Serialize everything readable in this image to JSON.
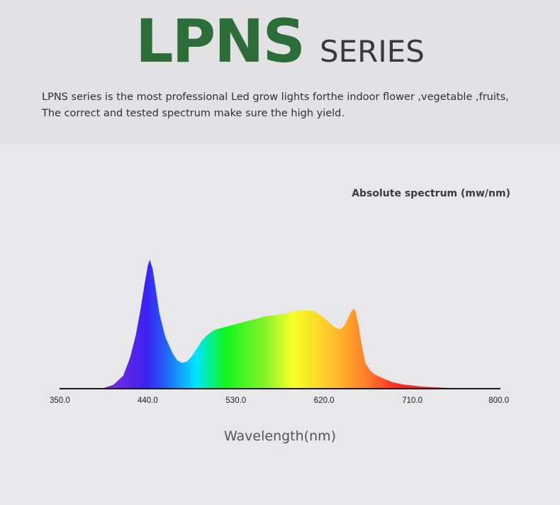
{
  "header": {
    "title_main": "LPNS",
    "title_sub": "SERIES",
    "description_lines": [
      "LPNS series is the most professional Led grow lights forthe indoor flower ,vegetable ,fruits,",
      "The correct and tested spectrum make sure the high yield."
    ]
  },
  "colors": {
    "brand_green": "#2d6d38",
    "title_dark": "#3a3a3a",
    "header_bg": "#e2e2e4",
    "page_bg": "#e8e8ea"
  },
  "chart_data": {
    "type": "area",
    "title": "Absolute spectrum (mw/nm)",
    "xlabel": "Wavelength(nm)",
    "ylabel": "",
    "xlim": [
      350,
      800
    ],
    "ylim": [
      0,
      1
    ],
    "x_tick_labels": [
      "350.0",
      "440.0",
      "530.0",
      "620.0",
      "710.0",
      "800.0"
    ],
    "x_ticks": [
      350,
      440,
      530,
      620,
      710,
      800
    ],
    "grid": false,
    "series": [
      {
        "x": [
          350,
          380,
          395,
          405,
          415,
          422,
          428,
          433,
          437,
          440,
          442,
          445,
          448,
          452,
          458,
          465,
          470,
          475,
          480,
          485,
          490,
          495,
          500,
          505,
          510,
          515,
          520,
          530,
          540,
          550,
          560,
          570,
          580,
          590,
          600,
          610,
          620,
          630,
          636,
          640,
          644,
          648,
          650,
          652,
          655,
          658,
          662,
          667,
          672,
          680,
          690,
          700,
          720,
          740,
          760,
          780,
          800
        ],
        "y": [
          0,
          0,
          0.005,
          0.03,
          0.1,
          0.24,
          0.42,
          0.63,
          0.82,
          0.95,
          1.0,
          0.93,
          0.78,
          0.58,
          0.4,
          0.28,
          0.22,
          0.2,
          0.21,
          0.25,
          0.31,
          0.37,
          0.41,
          0.44,
          0.46,
          0.47,
          0.48,
          0.5,
          0.52,
          0.54,
          0.56,
          0.57,
          0.58,
          0.6,
          0.61,
          0.6,
          0.55,
          0.48,
          0.46,
          0.48,
          0.54,
          0.6,
          0.62,
          0.6,
          0.5,
          0.36,
          0.2,
          0.14,
          0.11,
          0.08,
          0.05,
          0.033,
          0.016,
          0.008,
          0.003,
          0.001,
          0
        ]
      }
    ]
  }
}
